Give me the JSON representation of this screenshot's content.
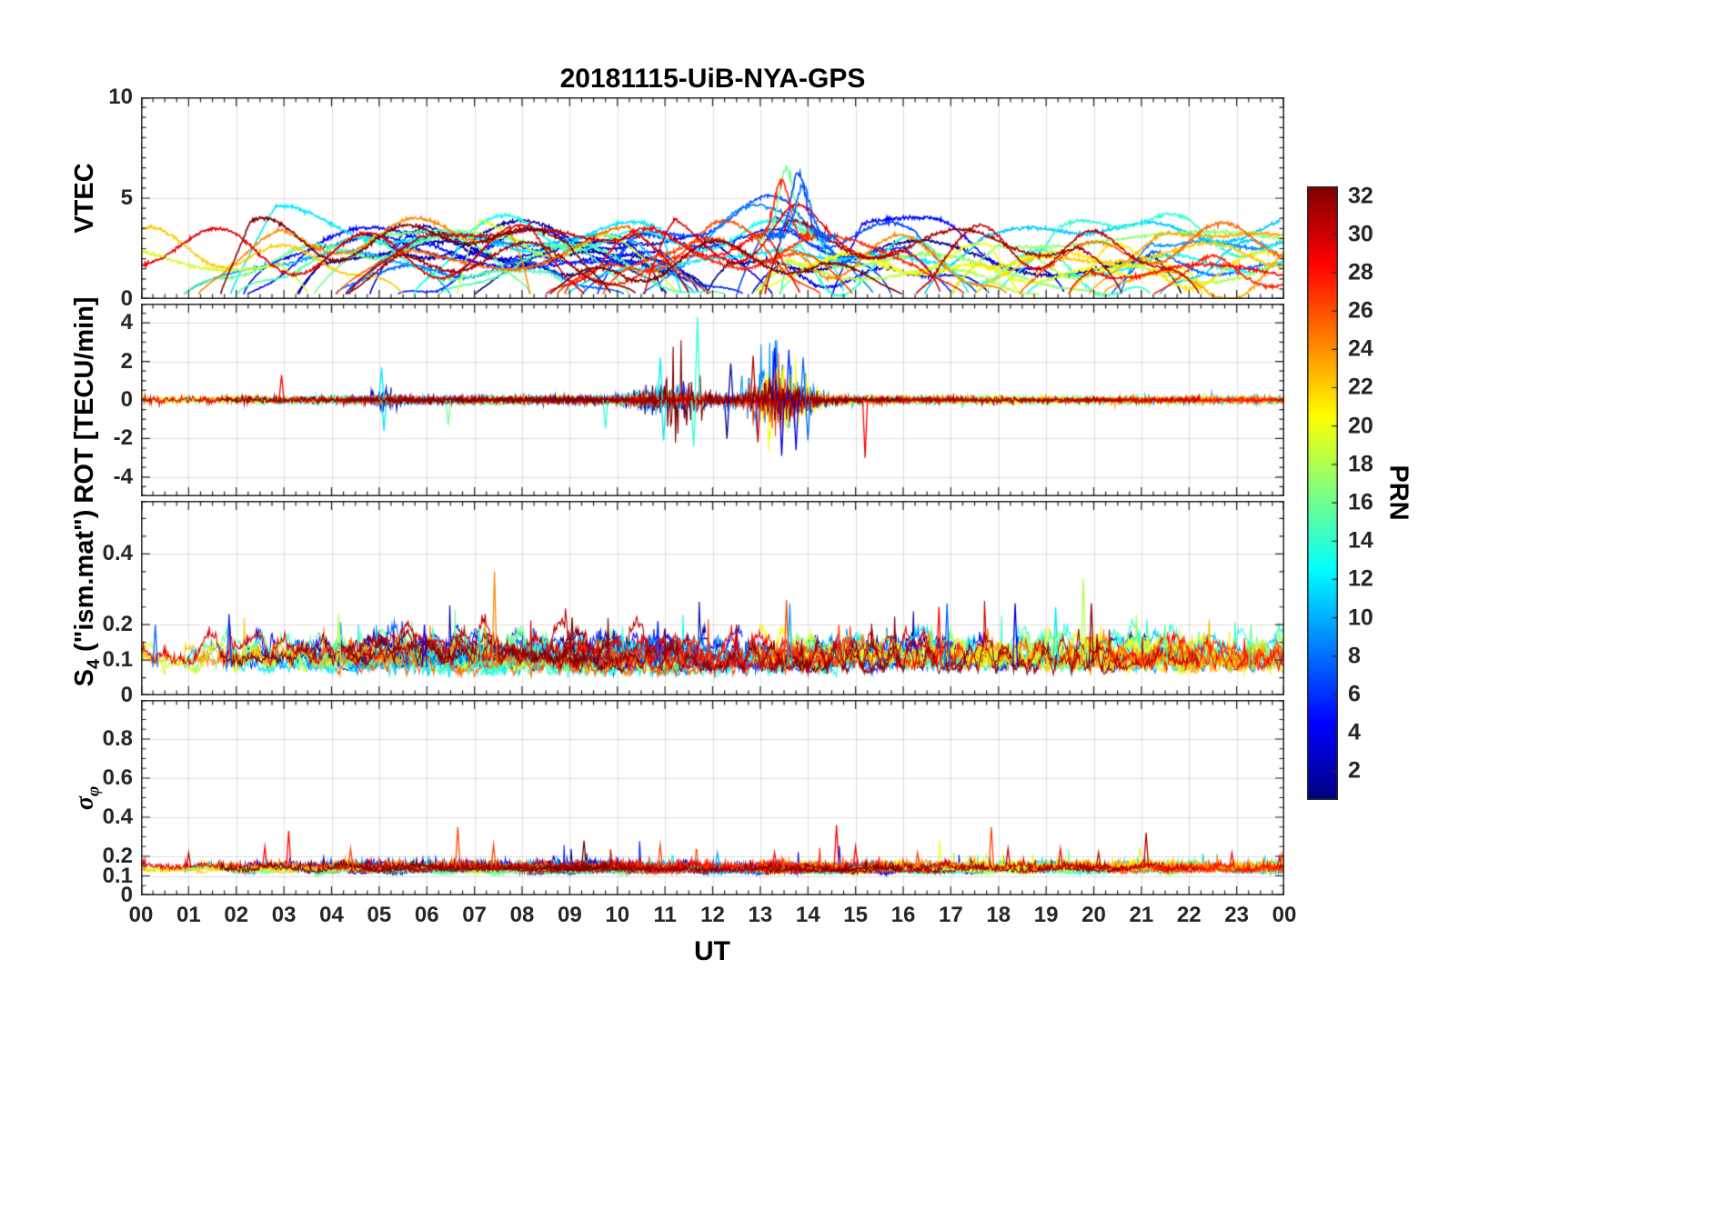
{
  "figure": {
    "title": "20181115-UiB-NYA-GPS",
    "xlabel": "UT",
    "background": "#ffffff",
    "axis_color": "#262626",
    "grid_alpha": 0.15,
    "noise_seed": 20181115
  },
  "xaxis": {
    "label": "UT",
    "range_hours": [
      0,
      24
    ],
    "major_tick_hours": 1,
    "minor_tick_minutes": 15,
    "tick_labels": [
      "00",
      "01",
      "02",
      "03",
      "04",
      "05",
      "06",
      "07",
      "08",
      "09",
      "10",
      "11",
      "12",
      "13",
      "14",
      "15",
      "16",
      "17",
      "18",
      "19",
      "20",
      "21",
      "22",
      "23",
      "00"
    ]
  },
  "colorbar": {
    "label": "PRN",
    "colormap": "jet",
    "value_range": [
      1,
      32
    ],
    "ticks": [
      2,
      4,
      6,
      8,
      10,
      12,
      14,
      16,
      18,
      20,
      22,
      24,
      26,
      28,
      30,
      32
    ],
    "tick_labels": [
      "2",
      "4",
      "6",
      "8",
      "10",
      "12",
      "14",
      "16",
      "18",
      "20",
      "22",
      "24",
      "26",
      "28",
      "30",
      "32"
    ]
  },
  "chart_data": [
    {
      "type": "line",
      "name": "VTEC",
      "ylabel_main": "VTEC",
      "ylabel_sub": "",
      "ylabel_rest": "",
      "ylim": [
        0,
        10
      ],
      "yticks": [
        0,
        5,
        10
      ],
      "ytick_labels": [
        "0",
        "5",
        "10"
      ],
      "y_minor_step": 0.5,
      "n_series": 32,
      "series_colored_by": "GPS PRN (jet colormap 1-32)",
      "summary": "24 h of vertical TEC for all tracked GPS PRNs; arcs mostly between 1 and 4.5 TECU all day, with an enhancement peaking near 6.5 TECU around 13.5-14 UT.",
      "model": {
        "base_range": [
          1.4,
          3.4
        ],
        "smooth_amp": [
          0.22,
          0.7
        ],
        "enhancement": {
          "t": 13.5,
          "width": 0.9,
          "extra_max": 2.4
        },
        "peaks": [
          {
            "t": 13.55,
            "value": 6.5,
            "prn": 16
          },
          {
            "t": 13.8,
            "value": 6.3,
            "prn": 7
          },
          {
            "t": 13.45,
            "value": 5.9,
            "prn": 27
          },
          {
            "t": 13.9,
            "value": 5.6,
            "prn": 8
          }
        ]
      }
    },
    {
      "type": "line",
      "name": "ROT",
      "ylabel_main": "ROT [TECU/min]",
      "ylabel_sub": "",
      "ylabel_rest": "",
      "ylim": [
        -5,
        5
      ],
      "yticks": [
        -4,
        -2,
        0,
        2,
        4
      ],
      "ytick_labels": [
        "-4",
        "-2",
        "0",
        "2",
        "4"
      ],
      "y_minor_step": 0.5,
      "n_series": 32,
      "series_colored_by": "GPS PRN (jet colormap 1-32)",
      "summary": "Rate of TEC mostly within +/-0.3 TECU/min; disturbed bursts to +/-2-3 between 10.5 and 14.5 UT; extreme spikes +4.3 near 11.7 UT and -3.0 near 15.2 UT.",
      "model": {
        "baseline_sigma": [
          0.05,
          0.1
        ],
        "bursts": [
          {
            "t": 13.35,
            "width": 0.7,
            "gain": 16
          },
          {
            "t": 11.35,
            "width": 0.5,
            "gain": 11
          },
          {
            "t": 10.65,
            "width": 0.4,
            "gain": 6
          },
          {
            "t": 5.1,
            "width": 0.3,
            "gain": 5
          }
        ],
        "events": [
          {
            "t": 11.68,
            "value": 4.3,
            "prn": 14
          },
          {
            "t": 11.6,
            "value": -2.4,
            "prn": 14
          },
          {
            "t": 10.9,
            "value": 2.2,
            "prn": 12
          },
          {
            "t": 10.97,
            "value": -2.1,
            "prn": 12
          },
          {
            "t": 5.05,
            "value": 1.7,
            "prn": 12
          },
          {
            "t": 5.1,
            "value": -1.6,
            "prn": 12
          },
          {
            "t": 13.3,
            "value": 2.7,
            "prn": 4
          },
          {
            "t": 13.45,
            "value": -2.9,
            "prn": 4
          },
          {
            "t": 13.6,
            "value": 2.6,
            "prn": 6
          },
          {
            "t": 13.75,
            "value": -2.6,
            "prn": 5
          },
          {
            "t": 12.85,
            "value": 2.3,
            "prn": 30
          },
          {
            "t": 12.95,
            "value": -2.2,
            "prn": 30
          },
          {
            "t": 15.2,
            "value": -3.0,
            "prn": 28
          },
          {
            "t": 2.95,
            "value": 1.3,
            "prn": 28
          },
          {
            "t": 6.45,
            "value": -1.3,
            "prn": 16
          },
          {
            "t": 9.75,
            "value": -1.5,
            "prn": 14
          },
          {
            "t": 12.3,
            "value": -2.0,
            "prn": 2
          },
          {
            "t": 12.38,
            "value": 1.9,
            "prn": 2
          },
          {
            "t": 13.9,
            "value": 2.2,
            "prn": 8
          },
          {
            "t": 14.0,
            "value": -2.1,
            "prn": 8
          }
        ]
      }
    },
    {
      "type": "line",
      "name": "S4",
      "ylabel_main": "S",
      "ylabel_sub": "4",
      "ylabel_rest": " (\"ism.mat\")",
      "ylim": [
        0,
        0.55
      ],
      "yticks": [
        0,
        0.1,
        0.2,
        0.4
      ],
      "ytick_labels": [
        "0",
        "0.1",
        "0.2",
        "0.4"
      ],
      "y_minor_step": 0.05,
      "n_series": 32,
      "series_colored_by": "GPS PRN (jet colormap 1-32)",
      "summary": "Amplitude scintillation index S4, baseline 0.05-0.15 for all PRNs with isolated spikes: 0.35 near 7.4 UT (orange), 0.33 near 19.8 UT (yellow) and many 0.2-0.27 spikes through the day.",
      "model": {
        "baseline": [
          0.05,
          0.09
        ],
        "spike_prob_per_min": 0.004,
        "spike_max": 0.2,
        "events": [
          {
            "t": 7.42,
            "value": 0.35,
            "prn": 24
          },
          {
            "t": 19.78,
            "value": 0.33,
            "prn": 18
          },
          {
            "t": 13.55,
            "value": 0.27,
            "prn": 26
          },
          {
            "t": 13.62,
            "value": 0.26,
            "prn": 10
          },
          {
            "t": 16.92,
            "value": 0.26,
            "prn": 8
          },
          {
            "t": 16.75,
            "value": 0.25,
            "prn": 28
          },
          {
            "t": 19.2,
            "value": 0.25,
            "prn": 12
          },
          {
            "t": 18.35,
            "value": 0.26,
            "prn": 4
          },
          {
            "t": 19.95,
            "value": 0.26,
            "prn": 32
          },
          {
            "t": 4.15,
            "value": 0.23,
            "prn": 18
          },
          {
            "t": 1.85,
            "value": 0.23,
            "prn": 6
          },
          {
            "t": 9.05,
            "value": 0.22,
            "prn": 32
          },
          {
            "t": 10.85,
            "value": 0.21,
            "prn": 6
          },
          {
            "t": 12.5,
            "value": 0.2,
            "prn": 30
          },
          {
            "t": 21.5,
            "value": 0.2,
            "prn": 16
          },
          {
            "t": 23.3,
            "value": 0.2,
            "prn": 16
          },
          {
            "t": 0.3,
            "value": 0.2,
            "prn": 8
          },
          {
            "t": 5.95,
            "value": 0.2,
            "prn": 4
          },
          {
            "t": 14.65,
            "value": 0.2,
            "prn": 26
          },
          {
            "t": 7.1,
            "value": 0.19,
            "prn": 14
          }
        ]
      }
    },
    {
      "type": "line",
      "name": "sigma-phi",
      "ylabel_main": "σ",
      "ylabel_sub": "φ",
      "ylabel_rest": "",
      "ylim": [
        0,
        1.0
      ],
      "yticks": [
        0,
        0.1,
        0.2,
        0.4,
        0.6,
        0.8
      ],
      "ytick_labels": [
        "0",
        "0.1",
        "0.2",
        "0.4",
        "0.6",
        "0.8"
      ],
      "y_minor_step": 0.05,
      "n_series": 32,
      "series_colored_by": "GPS PRN (jet colormap 1-32)",
      "summary": "Phase scintillation index sigma-phi, baseline ~0.1-0.17 dominated by red/dark-red (high PRN) traces, with spikes to ~0.33-0.36 near 3.1, 6.65, 14.6, 17.85 and 21.1 UT.",
      "model": {
        "baseline": [
          0.115,
          0.14
        ],
        "spike_prob_per_min": 0.002,
        "spike_max": 0.15,
        "events": [
          {
            "t": 3.1,
            "value": 0.33,
            "prn": 28
          },
          {
            "t": 6.65,
            "value": 0.35,
            "prn": 26
          },
          {
            "t": 14.6,
            "value": 0.36,
            "prn": 28
          },
          {
            "t": 17.85,
            "value": 0.35,
            "prn": 26
          },
          {
            "t": 21.1,
            "value": 0.32,
            "prn": 30
          },
          {
            "t": 9.3,
            "value": 0.28,
            "prn": 32
          },
          {
            "t": 2.6,
            "value": 0.25,
            "prn": 28
          },
          {
            "t": 4.4,
            "value": 0.24,
            "prn": 26
          },
          {
            "t": 7.4,
            "value": 0.26,
            "prn": 26
          },
          {
            "t": 10.9,
            "value": 0.26,
            "prn": 26
          },
          {
            "t": 12.1,
            "value": 0.22,
            "prn": 10
          },
          {
            "t": 13.3,
            "value": 0.22,
            "prn": 28
          },
          {
            "t": 15.0,
            "value": 0.25,
            "prn": 28
          },
          {
            "t": 16.3,
            "value": 0.22,
            "prn": 26
          },
          {
            "t": 18.2,
            "value": 0.24,
            "prn": 30
          },
          {
            "t": 19.3,
            "value": 0.24,
            "prn": 28
          },
          {
            "t": 20.1,
            "value": 0.22,
            "prn": 30
          },
          {
            "t": 22.9,
            "value": 0.22,
            "prn": 28
          },
          {
            "t": 23.9,
            "value": 0.2,
            "prn": 28
          },
          {
            "t": 1.0,
            "value": 0.22,
            "prn": 30
          }
        ]
      }
    }
  ]
}
